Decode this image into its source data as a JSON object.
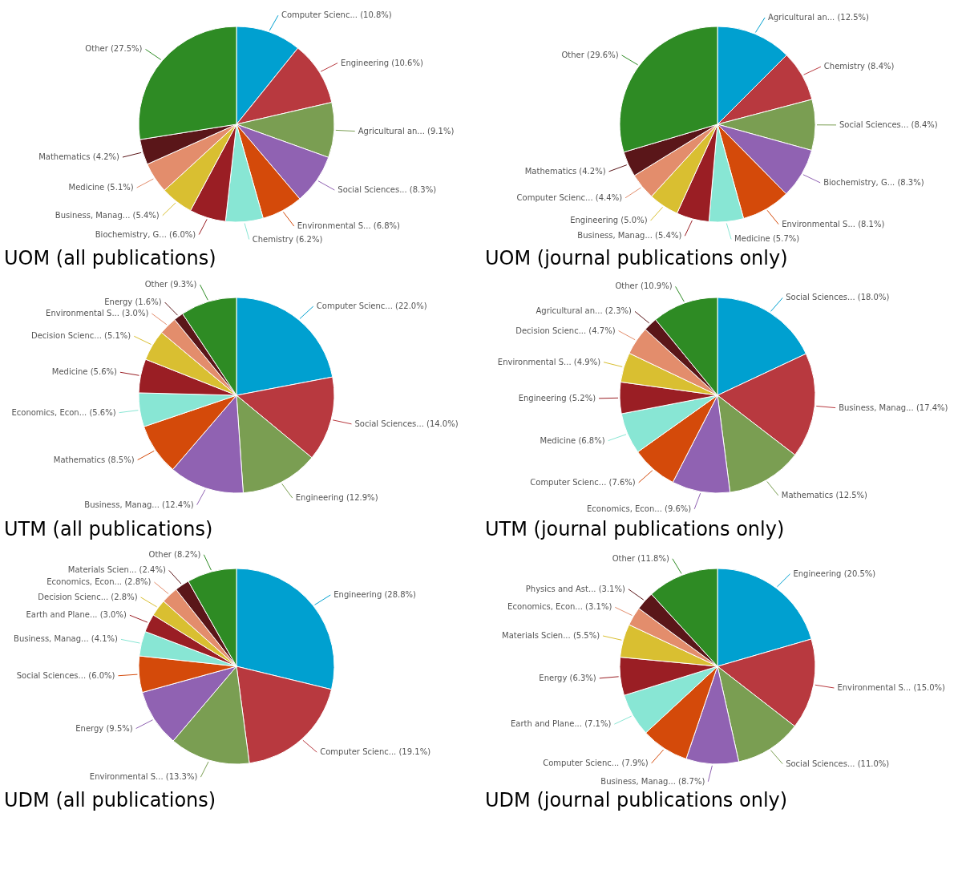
{
  "chart_data": [
    {
      "type": "pie",
      "title": "UOM (all publications)",
      "categories": [
        "Computer Scienc...",
        "Engineering",
        "Agricultural an...",
        "Social Sciences...",
        "Environmental S...",
        "Chemistry",
        "Biochemistry, G...",
        "Business, Manag...",
        "Medicine",
        "Mathematics",
        "Other"
      ],
      "values": [
        10.8,
        10.6,
        9.1,
        8.3,
        6.8,
        6.2,
        6.0,
        5.4,
        5.1,
        4.2,
        27.5
      ],
      "value_labels": [
        "(10.8%)",
        "(10.6%)",
        "(9.1%)",
        "(8.3%)",
        "(6.8%)",
        "(6.2%)",
        "(6.0%)",
        "(5.4%)",
        "(5.1%)",
        "(4.2%)",
        "(27.5%)"
      ],
      "colors": [
        "#00a0d0",
        "#b8393f",
        "#7a9e52",
        "#9062b2",
        "#d44a0a",
        "#88e6d4",
        "#9a1e24",
        "#d9bf31",
        "#e38d6c",
        "#5a1619",
        "#2e8b24"
      ]
    },
    {
      "type": "pie",
      "title": "UOM (journal publications only)",
      "categories": [
        "Agricultural an...",
        "Chemistry",
        "Social Sciences...",
        "Biochemistry, G...",
        "Environmental S...",
        "Medicine",
        "Business, Manag...",
        "Engineering",
        "Computer Scienc...",
        "Mathematics",
        "Other"
      ],
      "values": [
        12.5,
        8.4,
        8.4,
        8.3,
        8.1,
        5.7,
        5.4,
        5.0,
        4.4,
        4.2,
        29.6
      ],
      "value_labels": [
        "(12.5%)",
        "(8.4%)",
        "(8.4%)",
        "(8.3%)",
        "(8.1%)",
        "(5.7%)",
        "(5.4%)",
        "(5.0%)",
        "(4.4%)",
        "(4.2%)",
        "(29.6%)"
      ],
      "colors": [
        "#00a0d0",
        "#b8393f",
        "#7a9e52",
        "#9062b2",
        "#d44a0a",
        "#88e6d4",
        "#9a1e24",
        "#d9bf31",
        "#e38d6c",
        "#5a1619",
        "#2e8b24"
      ]
    },
    {
      "type": "pie",
      "title": "UTM (all publications)",
      "categories": [
        "Computer Scienc...",
        "Social Sciences...",
        "Engineering",
        "Business, Manag...",
        "Mathematics",
        "Economics, Econ...",
        "Medicine",
        "Decision Scienc...",
        "Environmental S...",
        "Energy",
        "Other"
      ],
      "values": [
        22.0,
        14.0,
        12.9,
        12.4,
        8.5,
        5.6,
        5.6,
        5.1,
        3.0,
        1.6,
        9.3
      ],
      "value_labels": [
        "(22.0%)",
        "(14.0%)",
        "(12.9%)",
        "(12.4%)",
        "(8.5%)",
        "(5.6%)",
        "(5.6%)",
        "(5.1%)",
        "(3.0%)",
        "(1.6%)",
        "(9.3%)"
      ],
      "colors": [
        "#00a0d0",
        "#b8393f",
        "#7a9e52",
        "#9062b2",
        "#d44a0a",
        "#88e6d4",
        "#9a1e24",
        "#d9bf31",
        "#e38d6c",
        "#5a1619",
        "#2e8b24"
      ]
    },
    {
      "type": "pie",
      "title": "UTM (journal publications only)",
      "categories": [
        "Social Sciences...",
        "Business, Manag...",
        "Mathematics",
        "Economics, Econ...",
        "Computer Scienc...",
        "Medicine",
        "Engineering",
        "Environmental S...",
        "Decision Scienc...",
        "Agricultural an...",
        "Other"
      ],
      "values": [
        18.0,
        17.4,
        12.5,
        9.6,
        7.6,
        6.8,
        5.2,
        4.9,
        4.7,
        2.3,
        10.9
      ],
      "value_labels": [
        "(18.0%)",
        "(17.4%)",
        "(12.5%)",
        "(9.6%)",
        "(7.6%)",
        "(6.8%)",
        "(5.2%)",
        "(4.9%)",
        "(4.7%)",
        "(2.3%)",
        "(10.9%)"
      ],
      "colors": [
        "#00a0d0",
        "#b8393f",
        "#7a9e52",
        "#9062b2",
        "#d44a0a",
        "#88e6d4",
        "#9a1e24",
        "#d9bf31",
        "#e38d6c",
        "#5a1619",
        "#2e8b24"
      ]
    },
    {
      "type": "pie",
      "title": "UDM (all publications)",
      "categories": [
        "Engineering",
        "Computer Scienc...",
        "Environmental S...",
        "Energy",
        "Social Sciences...",
        "Business, Manag...",
        "Earth and Plane...",
        "Decision Scienc...",
        "Economics, Econ...",
        "Materials Scien...",
        "Other"
      ],
      "values": [
        28.8,
        19.1,
        13.3,
        9.5,
        6.0,
        4.1,
        3.0,
        2.8,
        2.8,
        2.4,
        8.2
      ],
      "value_labels": [
        "(28.8%)",
        "(19.1%)",
        "(13.3%)",
        "(9.5%)",
        "(6.0%)",
        "(4.1%)",
        "(3.0%)",
        "(2.8%)",
        "(2.8%)",
        "(2.4%)",
        "(8.2%)"
      ],
      "colors": [
        "#00a0d0",
        "#b8393f",
        "#7a9e52",
        "#9062b2",
        "#d44a0a",
        "#88e6d4",
        "#9a1e24",
        "#d9bf31",
        "#e38d6c",
        "#5a1619",
        "#2e8b24"
      ]
    },
    {
      "type": "pie",
      "title": "UDM (journal publications only)",
      "categories": [
        "Engineering",
        "Environmental S...",
        "Social Sciences...",
        "Business, Manag...",
        "Computer Scienc...",
        "Earth and Plane...",
        "Energy",
        "Materials Scien...",
        "Economics, Econ...",
        "Physics and Ast...",
        "Other"
      ],
      "values": [
        20.5,
        15.0,
        11.0,
        8.7,
        7.9,
        7.1,
        6.3,
        5.5,
        3.1,
        3.1,
        11.8
      ],
      "value_labels": [
        "(20.5%)",
        "(15.0%)",
        "(11.0%)",
        "(8.7%)",
        "(7.9%)",
        "(7.1%)",
        "(6.3%)",
        "(5.5%)",
        "(3.1%)",
        "(3.1%)",
        "(11.8%)"
      ],
      "colors": [
        "#00a0d0",
        "#b8393f",
        "#7a9e52",
        "#9062b2",
        "#d44a0a",
        "#88e6d4",
        "#9a1e24",
        "#d9bf31",
        "#e38d6c",
        "#5a1619",
        "#2e8b24"
      ]
    }
  ]
}
